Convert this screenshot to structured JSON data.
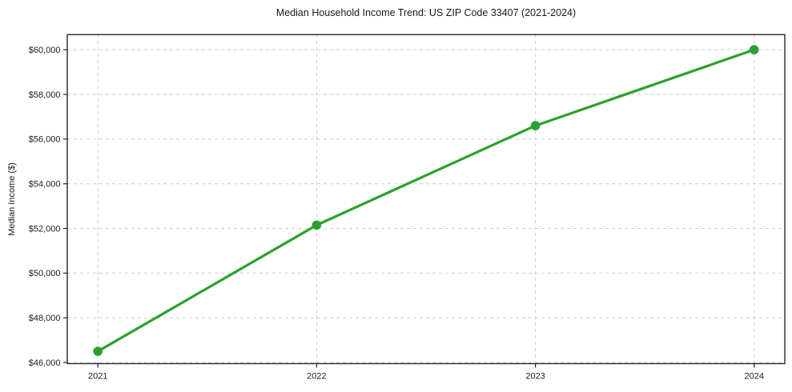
{
  "chart_data": {
    "type": "line",
    "title": "Median Household Income Trend: US ZIP Code 33407 (2021-2024)",
    "xlabel": "",
    "ylabel": "Median Income ($)",
    "x": [
      2021,
      2022,
      2023,
      2024
    ],
    "x_tick_labels": [
      "2021",
      "2022",
      "2023",
      "2024"
    ],
    "values": [
      46500,
      52150,
      56600,
      60000
    ],
    "yticks": [
      46000,
      48000,
      50000,
      52000,
      54000,
      56000,
      58000,
      60000
    ],
    "ytick_labels": [
      "$46,000",
      "$48,000",
      "$50,000",
      "$52,000",
      "$54,000",
      "$56,000",
      "$58,000",
      "$60,000"
    ],
    "xlim": [
      2020.86,
      2024.14
    ],
    "ylim": [
      45950,
      60675
    ],
    "grid": true,
    "grid_style": "dashed",
    "legend_position": "none",
    "colors": {
      "line": "#2ca02c",
      "marker": "#2ca02c",
      "grid": "#cccccc",
      "frame": "#262626",
      "tick_mark": "#262626",
      "text": "#1a1a1a",
      "background": "#ffffff"
    },
    "marker_radius": 5.8
  }
}
